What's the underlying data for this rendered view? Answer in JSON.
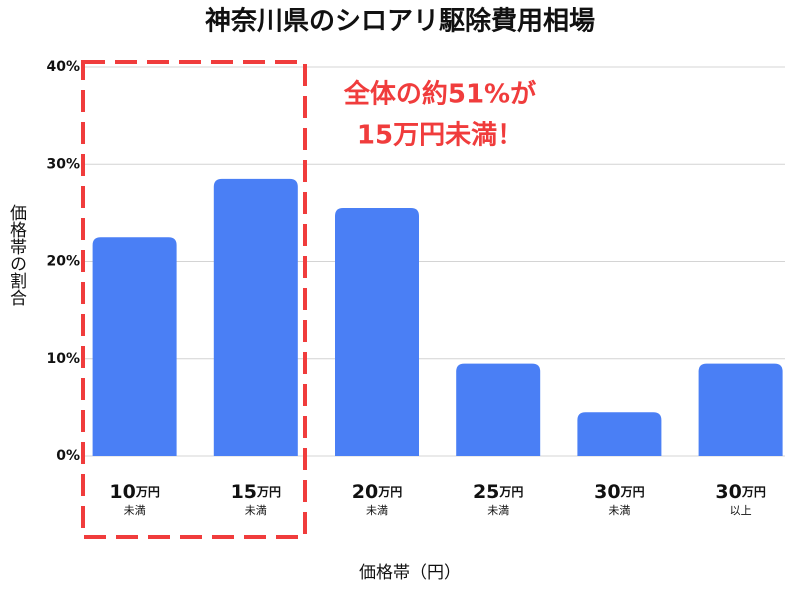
{
  "chart_data": {
    "type": "bar",
    "title": "神奈川県のシロアリ駆除費用相場",
    "y_label": "価格帯の割合",
    "x_label": "価格帯（円）",
    "annotation": [
      "全体の約51%が",
      "15万円未満！"
    ],
    "categories": [
      "10万円未満",
      "15万円未満",
      "20万円未満",
      "25万円未満",
      "30万円未満",
      "30万円以上"
    ],
    "values": [
      22.5,
      28.5,
      25.5,
      9.5,
      4.5,
      9.5
    ],
    "color": "#4a7ff5",
    "ylim": [
      0,
      40
    ],
    "yticks": [
      {
        "value": 0,
        "label": "0%"
      },
      {
        "value": 10,
        "label": "10%"
      },
      {
        "value": 20,
        "label": "20%"
      },
      {
        "value": 30,
        "label": "30%"
      },
      {
        "value": 40,
        "label": "40%"
      }
    ],
    "grid": true
  }
}
